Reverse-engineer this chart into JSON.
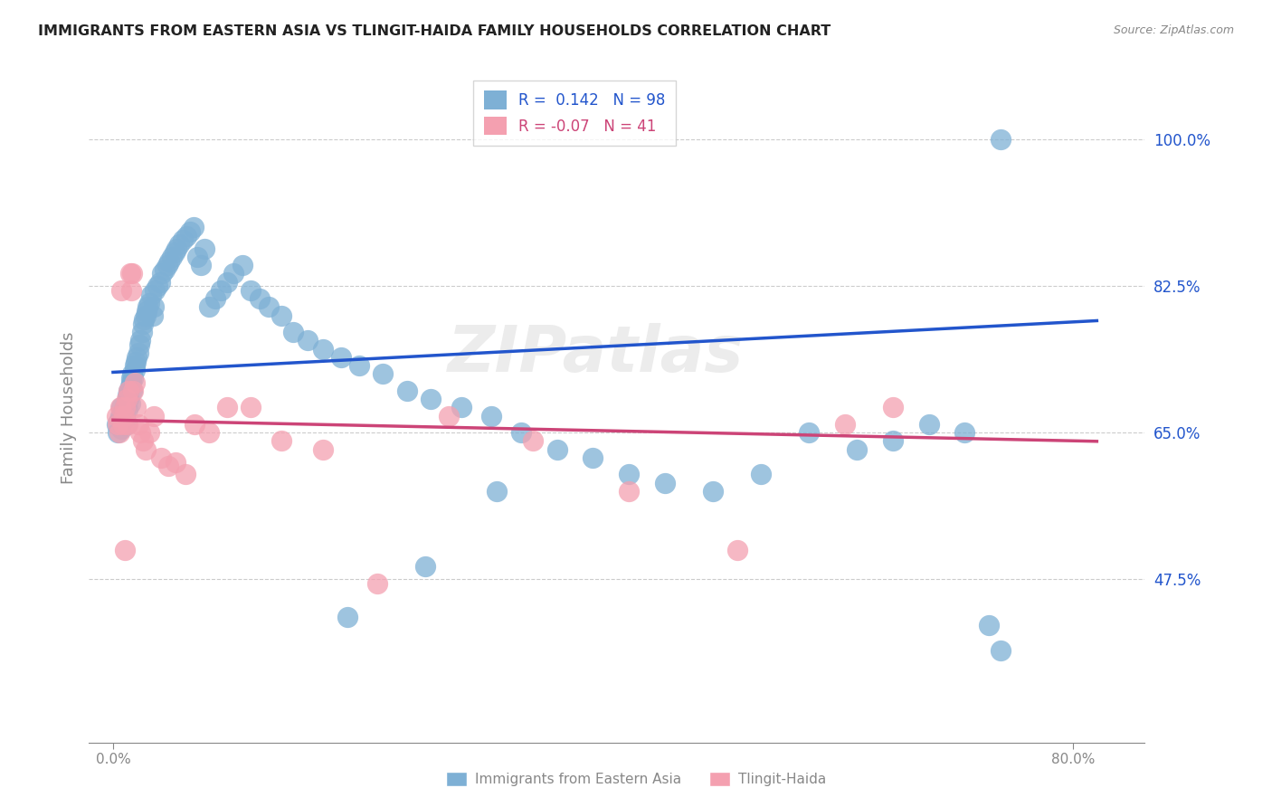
{
  "title": "IMMIGRANTS FROM EASTERN ASIA VS TLINGIT-HAIDA FAMILY HOUSEHOLDS CORRELATION CHART",
  "source": "Source: ZipAtlas.com",
  "ylabel": "Family Households",
  "ytick_vals": [
    0.475,
    0.65,
    0.825,
    1.0
  ],
  "ytick_labels": [
    "47.5%",
    "65.0%",
    "82.5%",
    "100.0%"
  ],
  "xtick_vals": [
    0.0,
    0.8
  ],
  "xtick_labels": [
    "0.0%",
    "80.0%"
  ],
  "xlim": [
    -0.02,
    0.86
  ],
  "ylim": [
    0.28,
    1.08
  ],
  "blue_R": 0.142,
  "blue_N": 98,
  "pink_R": -0.07,
  "pink_N": 41,
  "blue_color": "#7EB0D5",
  "pink_color": "#F4A0B0",
  "blue_line_color": "#2255CC",
  "pink_line_color": "#CC4477",
  "watermark": "ZIPatlas",
  "legend_label_blue": "Immigrants from Eastern Asia",
  "legend_label_pink": "Tlingit-Haida",
  "blue_x": [
    0.003,
    0.004,
    0.005,
    0.006,
    0.007,
    0.007,
    0.008,
    0.008,
    0.009,
    0.009,
    0.01,
    0.01,
    0.011,
    0.011,
    0.012,
    0.012,
    0.013,
    0.013,
    0.014,
    0.014,
    0.015,
    0.015,
    0.016,
    0.016,
    0.017,
    0.018,
    0.018,
    0.019,
    0.02,
    0.021,
    0.022,
    0.023,
    0.024,
    0.025,
    0.026,
    0.027,
    0.028,
    0.029,
    0.03,
    0.032,
    0.033,
    0.034,
    0.035,
    0.037,
    0.039,
    0.041,
    0.043,
    0.045,
    0.047,
    0.049,
    0.051,
    0.053,
    0.055,
    0.058,
    0.061,
    0.064,
    0.067,
    0.07,
    0.073,
    0.076,
    0.08,
    0.085,
    0.09,
    0.095,
    0.1,
    0.108,
    0.115,
    0.122,
    0.13,
    0.14,
    0.15,
    0.162,
    0.175,
    0.19,
    0.205,
    0.225,
    0.245,
    0.265,
    0.29,
    0.315,
    0.34,
    0.37,
    0.4,
    0.43,
    0.46,
    0.5,
    0.54,
    0.58,
    0.62,
    0.65,
    0.68,
    0.71,
    0.73,
    0.74,
    0.32,
    0.26,
    0.195,
    0.74
  ],
  "blue_y": [
    0.66,
    0.65,
    0.665,
    0.67,
    0.655,
    0.68,
    0.66,
    0.675,
    0.668,
    0.672,
    0.67,
    0.68,
    0.66,
    0.685,
    0.678,
    0.695,
    0.7,
    0.69,
    0.685,
    0.705,
    0.715,
    0.71,
    0.72,
    0.7,
    0.715,
    0.725,
    0.73,
    0.735,
    0.74,
    0.745,
    0.755,
    0.76,
    0.77,
    0.78,
    0.785,
    0.79,
    0.795,
    0.8,
    0.805,
    0.815,
    0.79,
    0.8,
    0.82,
    0.825,
    0.83,
    0.84,
    0.845,
    0.85,
    0.855,
    0.86,
    0.865,
    0.87,
    0.875,
    0.88,
    0.885,
    0.89,
    0.895,
    0.86,
    0.85,
    0.87,
    0.8,
    0.81,
    0.82,
    0.83,
    0.84,
    0.85,
    0.82,
    0.81,
    0.8,
    0.79,
    0.77,
    0.76,
    0.75,
    0.74,
    0.73,
    0.72,
    0.7,
    0.69,
    0.68,
    0.67,
    0.65,
    0.63,
    0.62,
    0.6,
    0.59,
    0.58,
    0.6,
    0.65,
    0.63,
    0.64,
    0.66,
    0.65,
    0.42,
    0.39,
    0.58,
    0.49,
    0.43,
    1.0
  ],
  "pink_x": [
    0.003,
    0.004,
    0.005,
    0.006,
    0.007,
    0.008,
    0.009,
    0.01,
    0.011,
    0.012,
    0.013,
    0.014,
    0.015,
    0.016,
    0.017,
    0.018,
    0.019,
    0.021,
    0.023,
    0.025,
    0.027,
    0.03,
    0.034,
    0.04,
    0.046,
    0.052,
    0.06,
    0.068,
    0.08,
    0.095,
    0.115,
    0.14,
    0.175,
    0.22,
    0.28,
    0.35,
    0.43,
    0.52,
    0.61,
    0.65,
    0.01
  ],
  "pink_y": [
    0.67,
    0.66,
    0.65,
    0.68,
    0.82,
    0.66,
    0.67,
    0.68,
    0.69,
    0.66,
    0.7,
    0.84,
    0.82,
    0.84,
    0.7,
    0.71,
    0.68,
    0.66,
    0.65,
    0.64,
    0.63,
    0.65,
    0.67,
    0.62,
    0.61,
    0.615,
    0.6,
    0.66,
    0.65,
    0.68,
    0.68,
    0.64,
    0.63,
    0.47,
    0.67,
    0.64,
    0.58,
    0.51,
    0.66,
    0.68,
    0.51
  ]
}
